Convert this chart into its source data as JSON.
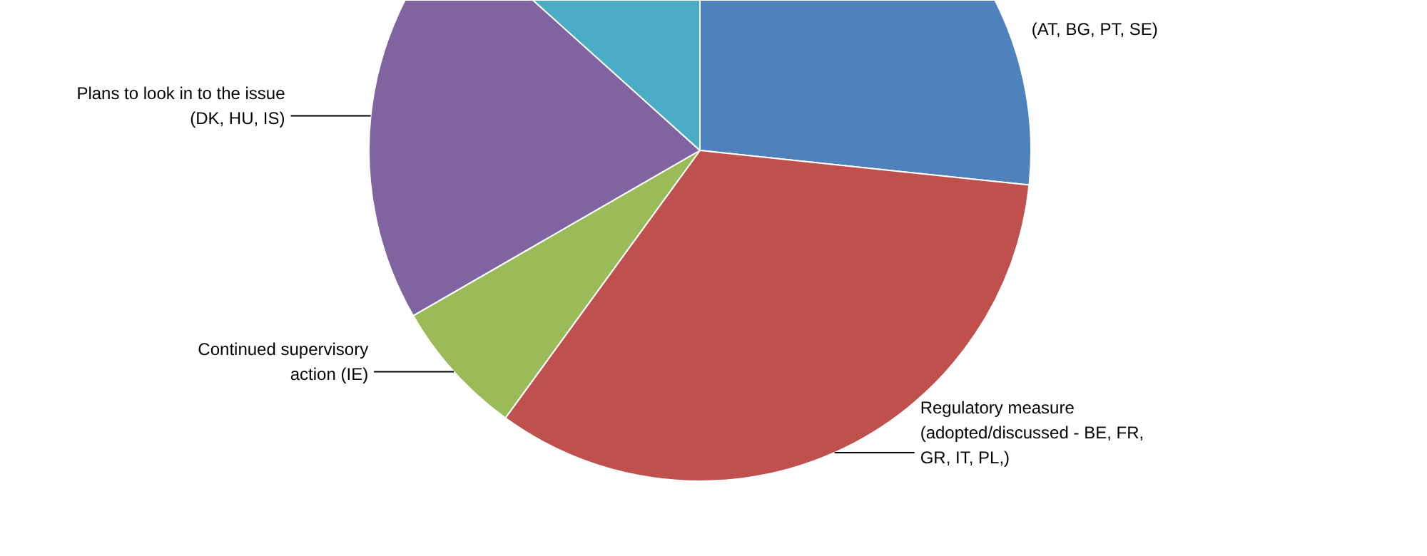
{
  "chart_data": {
    "type": "pie",
    "categories": [
      "(AT, BG, PT, SE)",
      "Regulatory measure\n(adopted/discussed - BE, FR,\nGR, IT, PL,)",
      "Continued supervisory\naction (IE)",
      "Plans to look in to the issue\n(DK, HU, IS)",
      null
    ],
    "values": [
      26.67,
      33.33,
      6.67,
      20,
      13.33
    ],
    "colors": [
      "#4f81bd",
      "#c0504d",
      "#9bbb59",
      "#8064a2",
      "#4bacc6"
    ]
  }
}
